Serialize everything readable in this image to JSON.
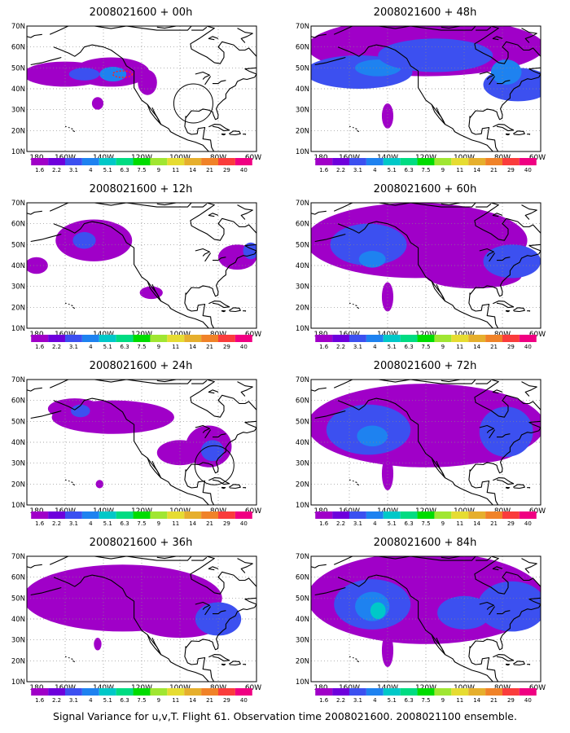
{
  "panels": [
    {
      "title": "2008021600 + 00h",
      "circle": true
    },
    {
      "title": "2008021600 + 48h",
      "circle": false
    },
    {
      "title": "2008021600 + 12h",
      "circle": false
    },
    {
      "title": "2008021600 + 60h",
      "circle": false
    },
    {
      "title": "2008021600 + 24h",
      "circle": true
    },
    {
      "title": "2008021600 + 72h",
      "circle": false
    },
    {
      "title": "2008021600 + 36h",
      "circle": false
    },
    {
      "title": "2008021600 + 84h",
      "circle": false
    }
  ],
  "lat_labels": [
    "70N",
    "60N",
    "50N",
    "40N",
    "30N",
    "20N",
    "10N"
  ],
  "lon_labels": [
    "180",
    "160W",
    "140W",
    "120W",
    "100W",
    "80W",
    "60W"
  ],
  "colorbar": {
    "labels": [
      "1.6",
      "2.2",
      "3.1",
      "4",
      "5.1",
      "6.3",
      "7.5",
      "9",
      "11",
      "14",
      "21",
      "29",
      "40"
    ],
    "colors": [
      "#a000c8",
      "#6e00dc",
      "#3c50f0",
      "#1e82f0",
      "#00c8c8",
      "#00dc82",
      "#00dc00",
      "#a0e632",
      "#e6dc32",
      "#e6af2d",
      "#f08228",
      "#fa3c3c",
      "#f00082"
    ]
  },
  "caption": "Signal Variance for u,v,T. Flight 61. Observation time 2008021600. 2008021100 ensemble."
}
